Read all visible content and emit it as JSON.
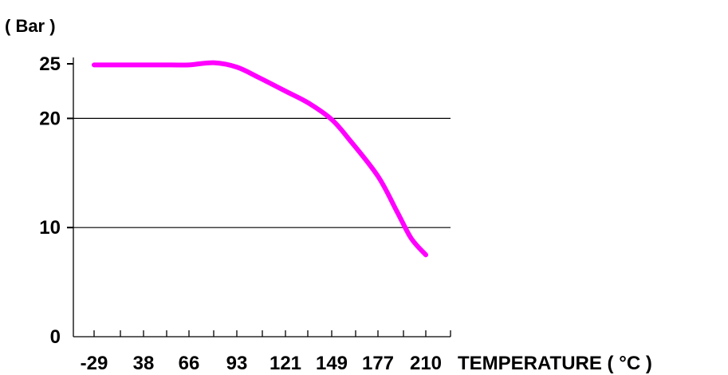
{
  "chart_data": {
    "type": "line",
    "title": "",
    "ylabel": "( Bar )",
    "xlabel": "TEMPERATURE ( °C )",
    "x_tick_labels": [
      "-29",
      "38",
      "66",
      "93",
      "121",
      "149",
      "177",
      "210"
    ],
    "y_ticks": [
      0,
      10,
      20,
      25
    ],
    "y_tick_labels": [
      "0",
      "10",
      "20",
      "25"
    ],
    "ylim": [
      0,
      25
    ],
    "grid_y": [
      10,
      20
    ],
    "series_color": "#ff00ff",
    "series": [
      {
        "x": [
          -29,
          -10,
          10,
          38,
          55,
          66,
          80,
          93,
          105,
          121,
          135,
          149,
          160,
          177,
          190,
          200,
          210
        ],
        "y": [
          24.9,
          24.9,
          24.9,
          24.9,
          24.9,
          24.9,
          25.1,
          24.7,
          23.8,
          22.5,
          21.4,
          19.9,
          18.0,
          14.7,
          11.5,
          9.0,
          7.5
        ]
      }
    ]
  }
}
